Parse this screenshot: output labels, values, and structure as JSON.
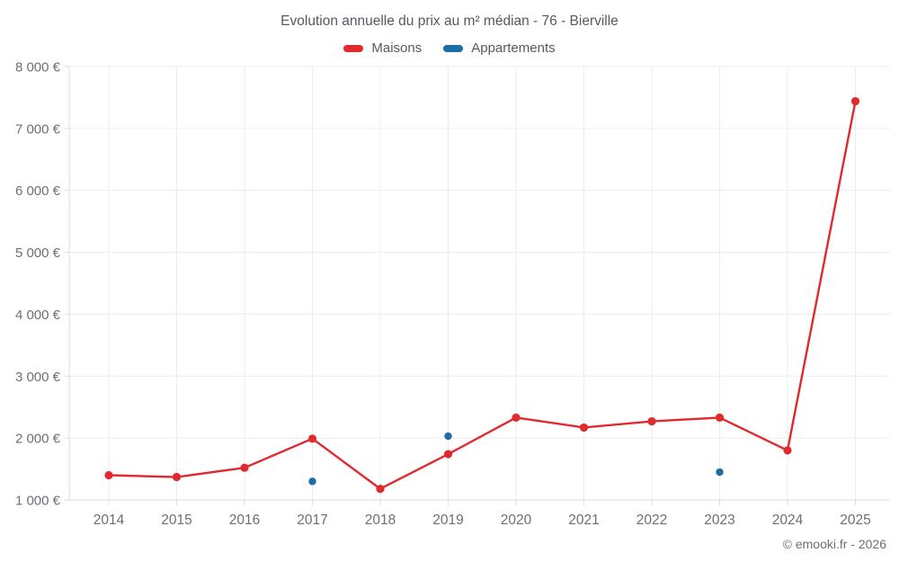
{
  "chart_data": {
    "type": "line",
    "title": "Evolution annuelle du prix au m² médian - 76 - Bierville",
    "categories": [
      "2014",
      "2015",
      "2016",
      "2017",
      "2018",
      "2019",
      "2020",
      "2021",
      "2022",
      "2023",
      "2024",
      "2025"
    ],
    "series": [
      {
        "name": "Maisons",
        "type": "line",
        "color": "#e02a2e",
        "values": [
          1400,
          1370,
          1520,
          1990,
          1180,
          1740,
          2330,
          2170,
          2270,
          2330,
          1800,
          7440
        ]
      },
      {
        "name": "Appartements",
        "type": "scatter",
        "color": "#1a6fa6",
        "values": [
          null,
          null,
          null,
          1300,
          null,
          2030,
          null,
          null,
          null,
          1450,
          null,
          null
        ]
      }
    ],
    "ylim": [
      1000,
      8000
    ],
    "yticks": [
      1000,
      2000,
      3000,
      4000,
      5000,
      6000,
      7000,
      8000
    ],
    "ytick_labels": [
      "1 000 €",
      "2 000 €",
      "3 000 €",
      "4 000 €",
      "5 000 €",
      "6 000 €",
      "7 000 €",
      "8 000 €"
    ],
    "grid": true,
    "legend_position": "top"
  },
  "footer": {
    "attribution": "© emooki.fr - 2026"
  },
  "colors": {
    "background": "#ffffff",
    "grid": "#ececec",
    "axis": "#dcdcdc",
    "tick_text": "#6b7076",
    "title_text": "#545a60"
  }
}
